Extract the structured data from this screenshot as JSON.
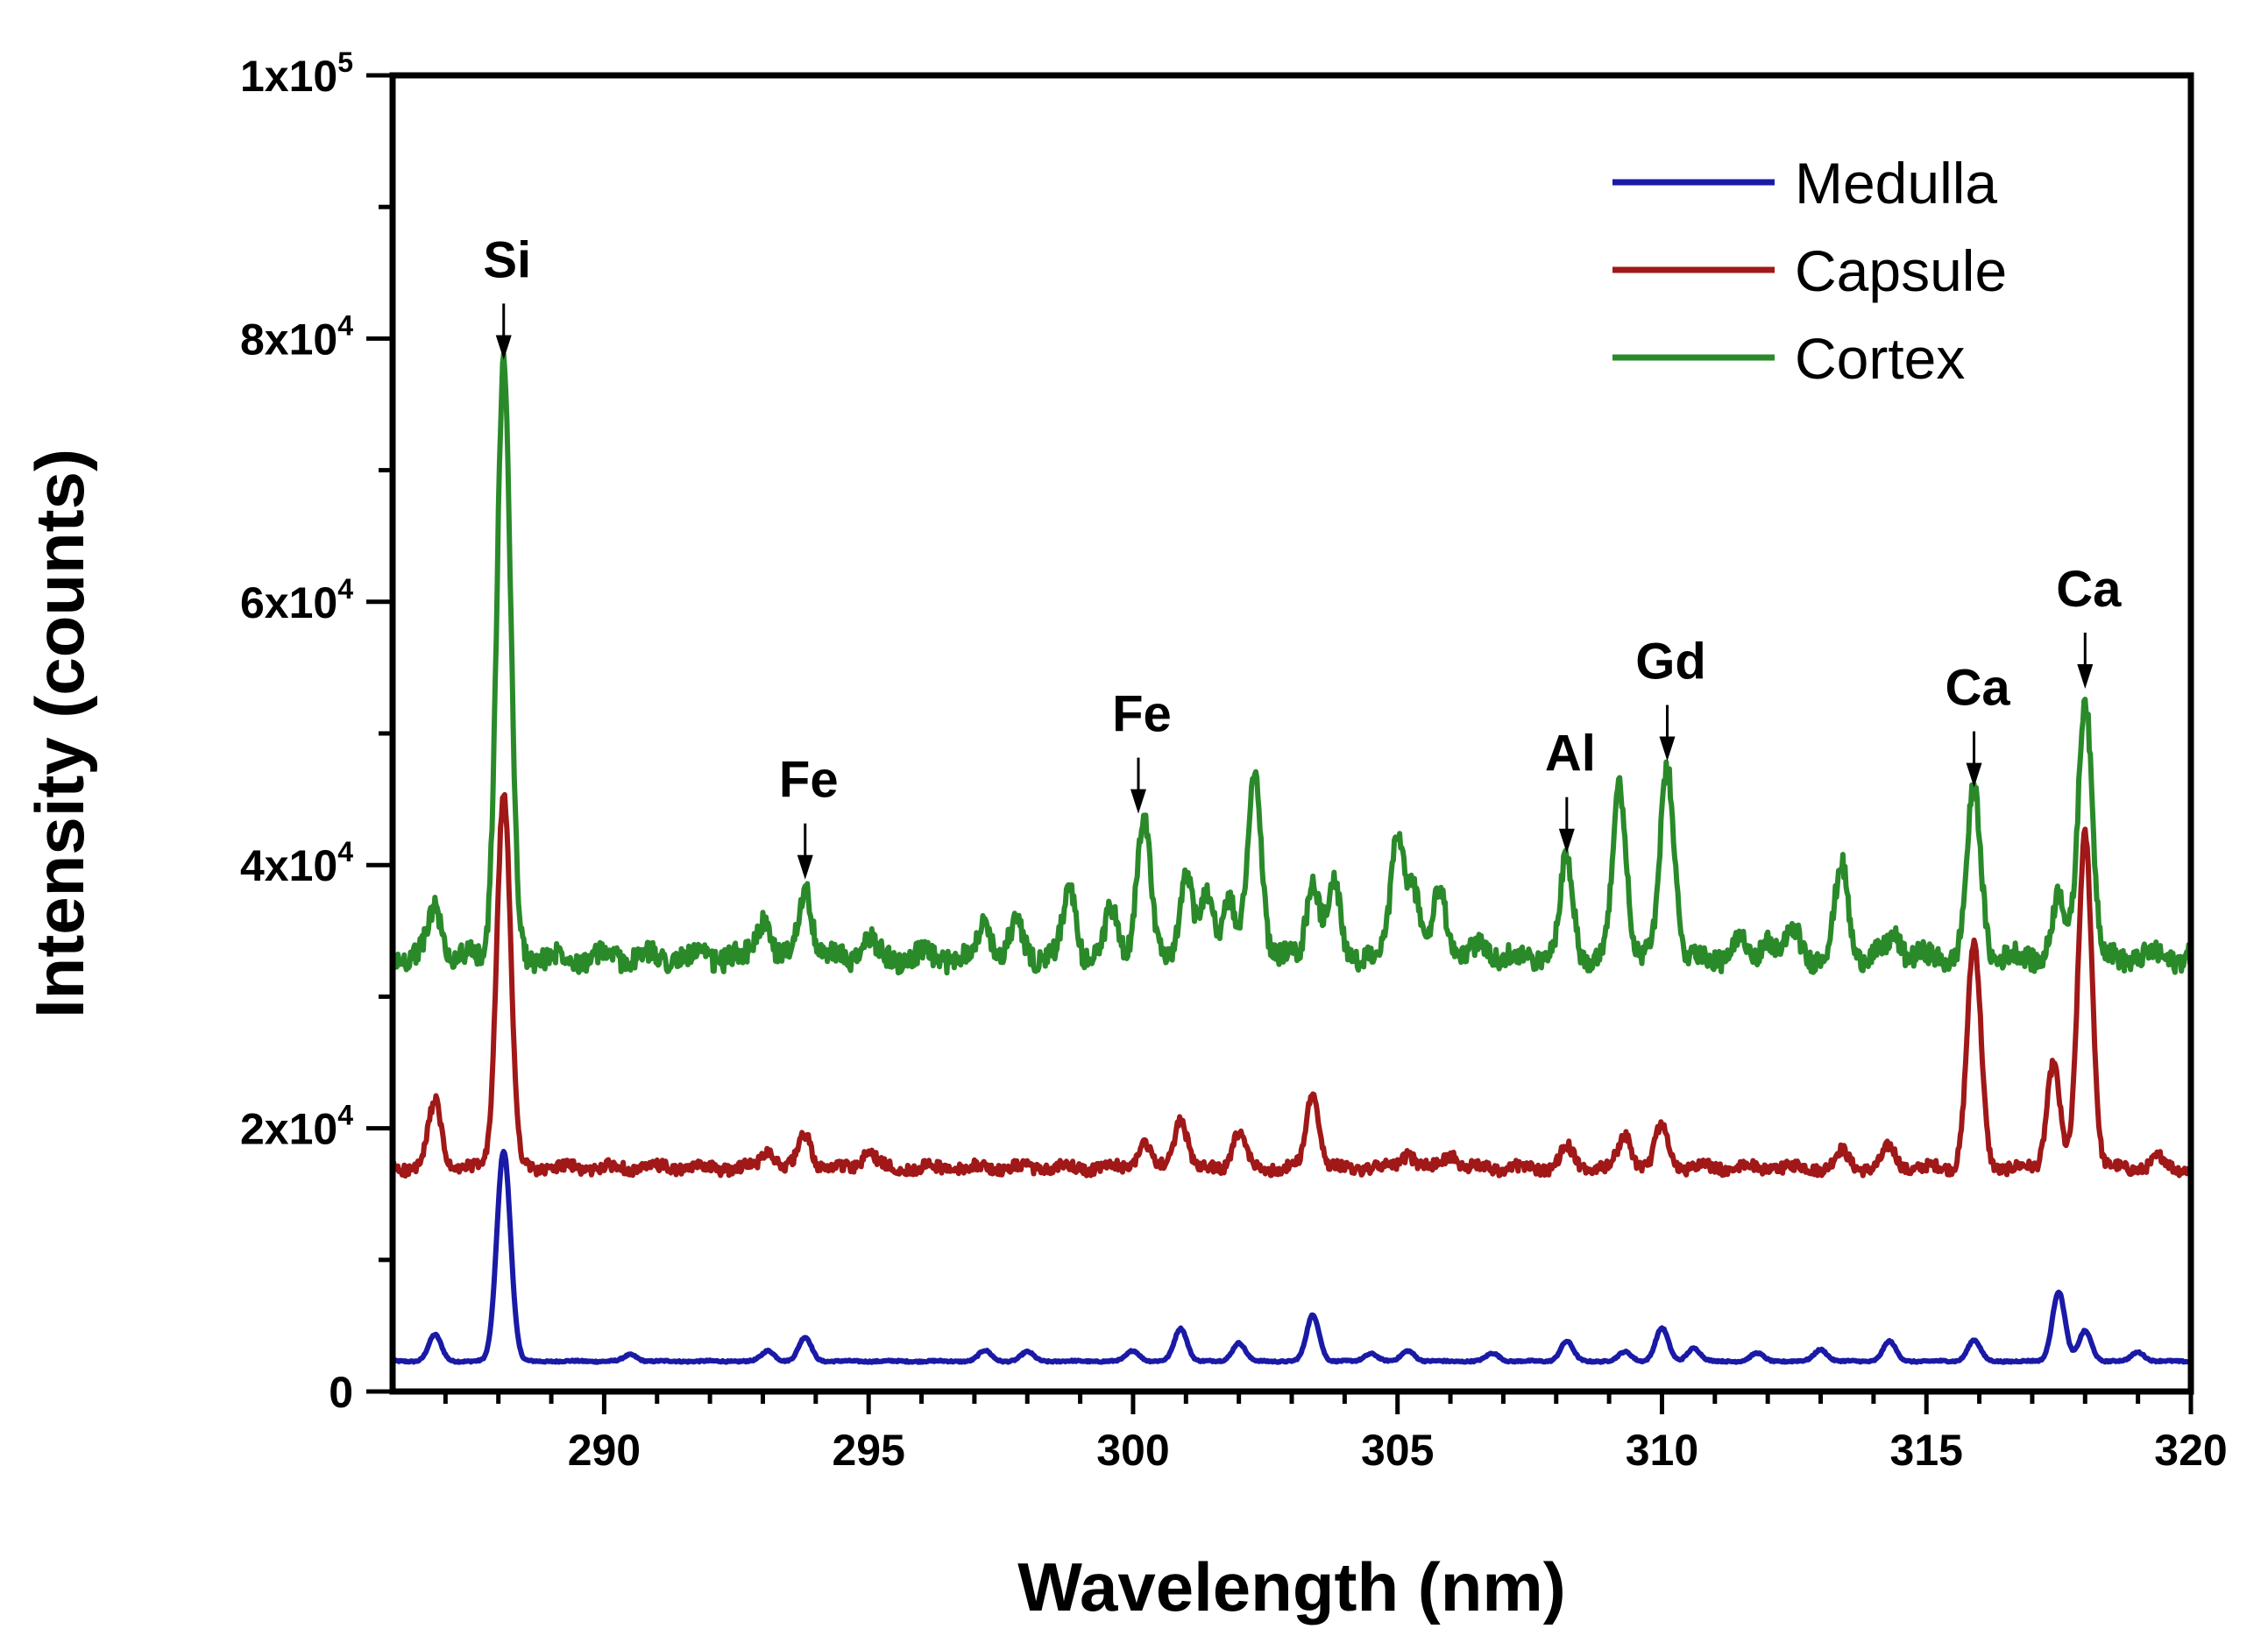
{
  "chart_data": {
    "type": "line",
    "title": "",
    "xlabel": "Wavelength (nm)",
    "ylabel": "Intensity (counts)",
    "xlim": [
      286,
      320
    ],
    "ylim": [
      0,
      100000
    ],
    "x_ticks": [
      290,
      295,
      300,
      305,
      310,
      315,
      320
    ],
    "y_ticks": [
      {
        "value": 0,
        "mantissa": "0",
        "exponent": ""
      },
      {
        "value": 20000,
        "mantissa": "2x10",
        "exponent": "4"
      },
      {
        "value": 40000,
        "mantissa": "4x10",
        "exponent": "4"
      },
      {
        "value": 60000,
        "mantissa": "6x10",
        "exponent": "4"
      },
      {
        "value": 80000,
        "mantissa": "8x10",
        "exponent": "4"
      },
      {
        "value": 100000,
        "mantissa": "1x10",
        "exponent": "5"
      }
    ],
    "grid": false,
    "legend_position": "top-right",
    "series": [
      {
        "name": "Medulla",
        "color": "#1a1aa6",
        "baseline": 2300,
        "peaks": [
          [
            286.8,
            2000
          ],
          [
            288.1,
            16000
          ],
          [
            290.5,
            500
          ],
          [
            293.1,
            800
          ],
          [
            293.8,
            1800
          ],
          [
            297.2,
            800
          ],
          [
            298.0,
            700
          ],
          [
            300.0,
            800
          ],
          [
            300.9,
            2500
          ],
          [
            302.0,
            1400
          ],
          [
            303.4,
            3500
          ],
          [
            304.5,
            600
          ],
          [
            305.2,
            800
          ],
          [
            306.8,
            600
          ],
          [
            308.2,
            1500
          ],
          [
            309.3,
            700
          ],
          [
            310.0,
            2500
          ],
          [
            310.6,
            1000
          ],
          [
            311.8,
            600
          ],
          [
            313.0,
            900
          ],
          [
            314.3,
            1500
          ],
          [
            315.9,
            1600
          ],
          [
            317.5,
            5300
          ],
          [
            318.0,
            2300
          ],
          [
            319.0,
            700
          ]
        ]
      },
      {
        "name": "Capsule",
        "color": "#a01818",
        "baseline": 17000,
        "peaks": [
          [
            286.8,
            5000
          ],
          [
            288.1,
            28500
          ],
          [
            293.1,
            1500
          ],
          [
            293.8,
            2500
          ],
          [
            295.0,
            1300
          ],
          [
            300.2,
            2000
          ],
          [
            300.9,
            3800
          ],
          [
            302.0,
            2600
          ],
          [
            303.4,
            5800
          ],
          [
            305.2,
            1100
          ],
          [
            306.0,
            1100
          ],
          [
            308.2,
            1500
          ],
          [
            309.3,
            2500
          ],
          [
            310.0,
            3200
          ],
          [
            313.4,
            1200
          ],
          [
            314.3,
            1500
          ],
          [
            315.9,
            17000
          ],
          [
            317.4,
            8000
          ],
          [
            318.0,
            25500
          ],
          [
            319.4,
            700
          ]
        ]
      },
      {
        "name": "Cortex",
        "color": "#2a8a2a",
        "baseline": 33000,
        "peaks": [
          [
            286.8,
            4000
          ],
          [
            288.1,
            45000
          ],
          [
            293.0,
            3000
          ],
          [
            293.8,
            5500
          ],
          [
            295.0,
            1300
          ],
          [
            297.2,
            2800
          ],
          [
            297.8,
            2500
          ],
          [
            298.8,
            5000
          ],
          [
            299.6,
            3500
          ],
          [
            300.2,
            10500
          ],
          [
            301.0,
            6000
          ],
          [
            301.4,
            5000
          ],
          [
            301.8,
            4500
          ],
          [
            302.3,
            14000
          ],
          [
            303.4,
            6000
          ],
          [
            303.8,
            5500
          ],
          [
            305.0,
            9500
          ],
          [
            305.3,
            5000
          ],
          [
            305.8,
            5500
          ],
          [
            306.6,
            1200
          ],
          [
            308.2,
            7500
          ],
          [
            309.2,
            13000
          ],
          [
            310.1,
            14500
          ],
          [
            311.5,
            1200
          ],
          [
            312.0,
            1500
          ],
          [
            312.5,
            2000
          ],
          [
            313.4,
            7000
          ],
          [
            314.4,
            1800
          ],
          [
            315.9,
            12500
          ],
          [
            317.5,
            4500
          ],
          [
            318.0,
            20000
          ]
        ]
      }
    ],
    "annotations": [
      {
        "label": "Si",
        "x": 288.1,
        "y": 78000
      },
      {
        "label": "Fe",
        "x": 293.8,
        "y": 38500
      },
      {
        "label": "Fe",
        "x": 300.1,
        "y": 43500
      },
      {
        "label": "Al",
        "x": 308.2,
        "y": 40500
      },
      {
        "label": "Gd",
        "x": 310.1,
        "y": 47500
      },
      {
        "label": "Ca",
        "x": 315.9,
        "y": 45500
      },
      {
        "label": "Ca",
        "x": 318.0,
        "y": 53000
      }
    ]
  }
}
